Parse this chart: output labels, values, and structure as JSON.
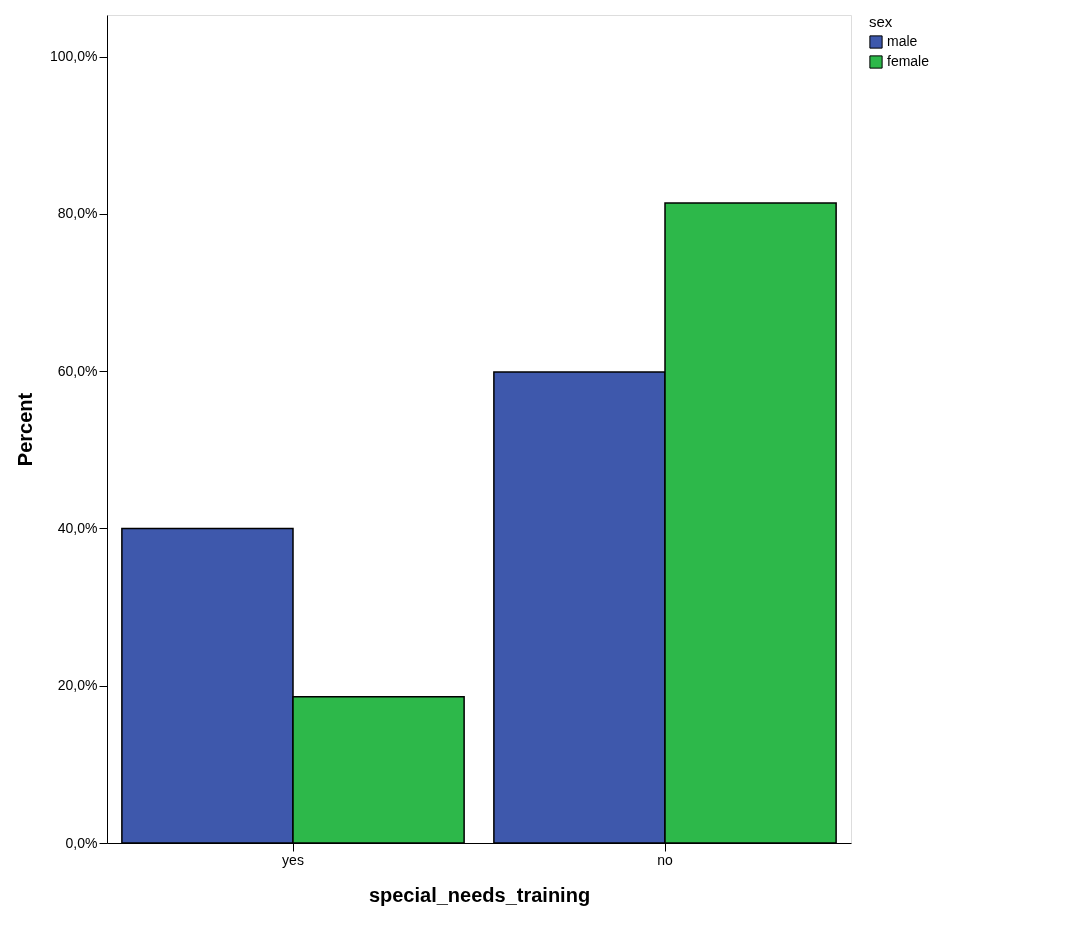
{
  "chart_data": {
    "type": "bar",
    "xlabel": "special_needs_training",
    "ylabel": "Percent",
    "legend_title": "sex",
    "legend": "top right",
    "grid": false,
    "categories": [
      "yes",
      "no"
    ],
    "series": [
      {
        "name": "male",
        "color": "#3e58ac",
        "values": [
          40.0,
          59.9
        ]
      },
      {
        "name": "female",
        "color": "#2db84a",
        "values": [
          18.6,
          81.4
        ]
      }
    ],
    "ylim": [
      0,
      105.3
    ],
    "yticks": [
      {
        "value": 0,
        "label": "0,0%"
      },
      {
        "value": 20,
        "label": "20,0%"
      },
      {
        "value": 40,
        "label": "40,0%"
      },
      {
        "value": 60,
        "label": "60,0%"
      },
      {
        "value": 80,
        "label": "80,0%"
      },
      {
        "value": 100,
        "label": "100,0%"
      }
    ]
  }
}
